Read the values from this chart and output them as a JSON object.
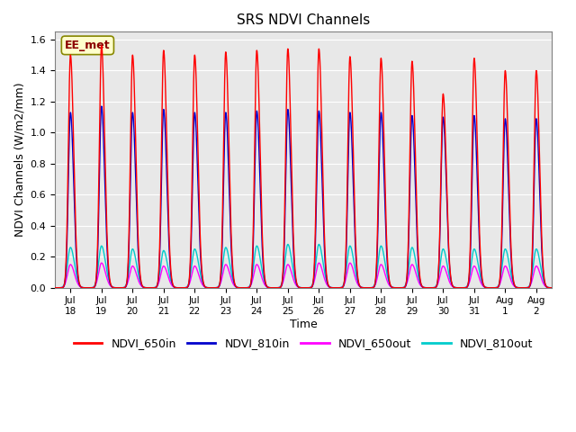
{
  "title": "SRS NDVI Channels",
  "xlabel": "Time",
  "ylabel": "NDVI Channels (W/m2/mm)",
  "ylim": [
    0,
    1.65
  ],
  "bg_color": "#e8e8e8",
  "annotation_text": "EE_met",
  "legend_labels": [
    "NDVI_650in",
    "NDVI_810in",
    "NDVI_650out",
    "NDVI_810out"
  ],
  "legend_colors": [
    "#ff0000",
    "#0000cc",
    "#ff00ff",
    "#00cccc"
  ],
  "line_colors": {
    "NDVI_650in": "#ff0000",
    "NDVI_810in": "#0000cc",
    "NDVI_650out": "#ff00ff",
    "NDVI_810out": "#00cccc"
  },
  "x_tick_labels": [
    "Jul\n18",
    "Jul\n19",
    "Jul\n20",
    "Jul\n21",
    "Jul\n22",
    "Jul\n23",
    "Jul\n24",
    "Jul\n25",
    "Jul\n26",
    "Jul\n27",
    "Jul\n28",
    "Jul\n29",
    "Jul\n30",
    "Jul\n31",
    "Aug\n1",
    "Aug\n2"
  ],
  "num_days": 16,
  "peaks_650in": [
    1.5,
    1.56,
    1.5,
    1.53,
    1.5,
    1.52,
    1.53,
    1.54,
    1.54,
    1.49,
    1.48,
    1.46,
    1.25,
    1.48,
    1.4,
    1.4
  ],
  "peaks_810in": [
    1.13,
    1.17,
    1.13,
    1.15,
    1.13,
    1.13,
    1.14,
    1.15,
    1.14,
    1.13,
    1.13,
    1.11,
    1.1,
    1.11,
    1.09,
    1.09
  ],
  "peaks_650out": [
    0.15,
    0.16,
    0.14,
    0.14,
    0.14,
    0.15,
    0.15,
    0.15,
    0.16,
    0.16,
    0.15,
    0.15,
    0.14,
    0.14,
    0.14,
    0.14
  ],
  "peaks_810out": [
    0.26,
    0.27,
    0.25,
    0.24,
    0.25,
    0.26,
    0.27,
    0.28,
    0.28,
    0.27,
    0.27,
    0.26,
    0.25,
    0.25,
    0.25,
    0.25
  ],
  "yticks": [
    0.0,
    0.2,
    0.4,
    0.6,
    0.8,
    1.0,
    1.2,
    1.4,
    1.6
  ]
}
